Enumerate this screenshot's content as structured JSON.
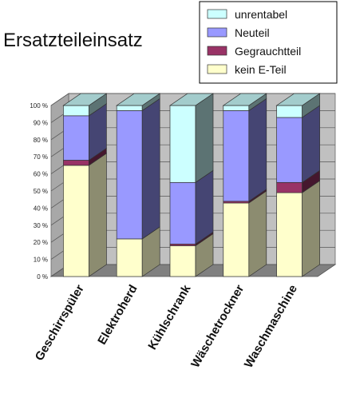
{
  "chart_data": {
    "type": "bar",
    "stacked": true,
    "three_d": true,
    "title": "Ersatzteileinsatz",
    "categories": [
      "Geschirrspüler",
      "Elektroherd",
      "Kühlschrank",
      "Wäschetrockner",
      "Waschmaschine"
    ],
    "series": [
      {
        "name": "kein E-Teil",
        "color": "#ffffcc",
        "values": [
          65,
          22,
          18,
          43,
          49
        ]
      },
      {
        "name": "Gegrauchtteil",
        "color": "#993366",
        "values": [
          3,
          0,
          1,
          1,
          6
        ]
      },
      {
        "name": "Neuteil",
        "color": "#9999ff",
        "values": [
          26,
          75,
          36,
          53,
          38
        ]
      },
      {
        "name": "unrentabel",
        "color": "#ccffff",
        "values": [
          6,
          3,
          45,
          3,
          7
        ]
      }
    ],
    "legend_order": [
      "unrentabel",
      "Neuteil",
      "Gegrauchtteil",
      "kein E-Teil"
    ],
    "legend_position": "top-right",
    "y_ticks": [
      "0 %",
      "10 %",
      "20 %",
      "30 %",
      "40 %",
      "50 %",
      "60 %",
      "70 %",
      "80 %",
      "90 %",
      "100 %"
    ],
    "ylim": [
      0,
      100
    ],
    "xlabel": "",
    "ylabel": "",
    "wall_color": "#c0c0c0",
    "floor_color": "#808080"
  }
}
